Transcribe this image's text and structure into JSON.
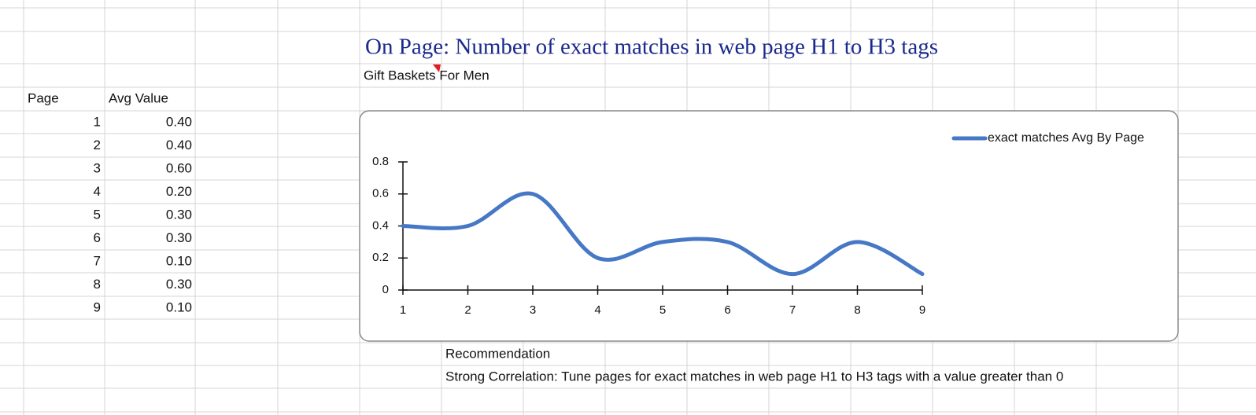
{
  "title": "On Page: Number of exact matches in web page H1 to H3 tags",
  "subtitle": "Gift Baskets For Men",
  "table": {
    "header": [
      "Page",
      "Avg Value"
    ],
    "rows": [
      [
        "1",
        "0.40"
      ],
      [
        "2",
        "0.40"
      ],
      [
        "3",
        "0.60"
      ],
      [
        "4",
        "0.20"
      ],
      [
        "5",
        "0.30"
      ],
      [
        "6",
        "0.30"
      ],
      [
        "7",
        "0.10"
      ],
      [
        "8",
        "0.30"
      ],
      [
        "9",
        "0.10"
      ]
    ]
  },
  "recommendation": {
    "heading": "Recommendation",
    "text": "Strong Correlation: Tune pages for exact matches in web page H1 to H3 tags with a value greater than 0"
  },
  "chart_data": {
    "type": "line",
    "smooth": true,
    "x": [
      1,
      2,
      3,
      4,
      5,
      6,
      7,
      8,
      9
    ],
    "series": [
      {
        "name": "exact matches Avg By Page",
        "color": "#4678c6",
        "values": [
          0.4,
          0.4,
          0.6,
          0.2,
          0.3,
          0.3,
          0.1,
          0.3,
          0.1
        ]
      }
    ],
    "xlim": [
      1,
      9
    ],
    "xticks": [
      1,
      2,
      3,
      4,
      5,
      6,
      7,
      8,
      9
    ],
    "ylim": [
      0,
      0.8
    ],
    "yticks": [
      0,
      0.2,
      0.4,
      0.6,
      0.8
    ],
    "legend": "upper right"
  }
}
